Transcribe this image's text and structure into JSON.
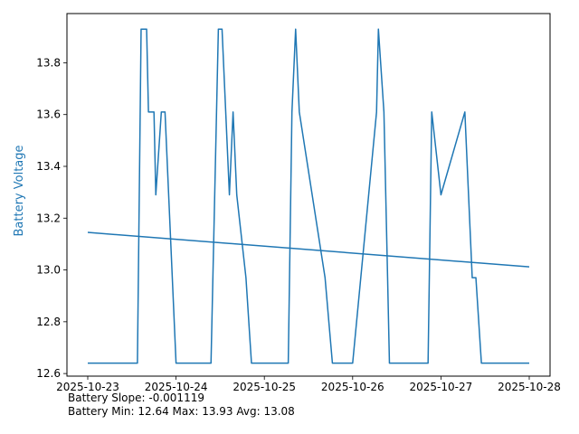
{
  "chart_data": {
    "type": "line",
    "title": "",
    "xlabel": "",
    "ylabel": "Battery Voltage",
    "ylabel_color": "#1f77b4",
    "xlim": [
      "2025-10-23",
      "2025-10-28"
    ],
    "ylim": [
      12.59,
      13.99
    ],
    "x_ticks": [
      "2025-10-23",
      "2025-10-24",
      "2025-10-25",
      "2025-10-26",
      "2025-10-27",
      "2025-10-28"
    ],
    "y_ticks": [
      12.6,
      12.8,
      13.0,
      13.2,
      13.4,
      13.6,
      13.8
    ],
    "y_tick_labels": [
      "12.6",
      "12.8",
      "13.0",
      "13.2",
      "13.4",
      "13.6",
      "13.8"
    ],
    "grid": false,
    "legend": "none",
    "series": [
      {
        "color": "#1f77b4",
        "x": [
          "2025-10-23 00:00",
          "2025-10-23 06:30",
          "2025-10-23 07:00",
          "2025-10-23 08:30",
          "2025-10-23 09:30",
          "2025-10-23 12:30",
          "2025-10-23 13:30",
          "2025-10-23 14:30",
          "2025-10-23 16:00",
          "2025-10-23 16:30",
          "2025-10-23 17:30",
          "2025-10-23 18:00",
          "2025-10-23 18:30",
          "2025-10-23 20:00",
          "2025-10-23 21:00",
          "2025-10-24 00:00",
          "2025-10-24 06:30",
          "2025-10-24 07:00",
          "2025-10-24 08:30",
          "2025-10-24 09:30",
          "2025-10-24 11:30",
          "2025-10-24 12:30",
          "2025-10-24 13:30",
          "2025-10-24 14:30",
          "2025-10-24 15:30",
          "2025-10-24 16:30",
          "2025-10-24 19:00",
          "2025-10-24 20:30",
          "2025-10-24 21:30",
          "2025-10-25 00:00",
          "2025-10-25 06:30",
          "2025-10-25 07:30",
          "2025-10-25 08:30",
          "2025-10-25 09:30",
          "2025-10-25 16:30",
          "2025-10-25 18:30",
          "2025-10-25 20:30",
          "2025-10-25 21:30",
          "2025-10-26 00:00",
          "2025-10-26 06:30",
          "2025-10-26 07:00",
          "2025-10-26 08:30",
          "2025-10-26 09:30",
          "2025-10-26 10:00",
          "2025-10-26 16:30",
          "2025-10-26 17:30",
          "2025-10-26 20:30",
          "2025-10-26 21:30",
          "2025-10-27 00:00",
          "2025-10-27 06:30",
          "2025-10-27 07:30",
          "2025-10-27 08:30",
          "2025-10-27 09:30",
          "2025-10-27 11:00",
          "2025-10-27 12:30",
          "2025-10-27 13:30",
          "2025-10-27 14:30",
          "2025-10-27 16:00",
          "2025-10-27 17:00",
          "2025-10-27 19:00",
          "2025-10-27 20:00",
          "2025-10-27 21:00",
          "2025-10-28 00:00"
        ],
        "values": [
          12.64,
          12.64,
          12.64,
          12.64,
          12.64,
          12.64,
          12.64,
          13.93,
          13.93,
          13.61,
          13.61,
          13.61,
          13.29,
          13.61,
          13.61,
          12.64,
          12.64,
          12.64,
          12.64,
          12.64,
          13.93,
          13.93,
          13.61,
          13.29,
          13.61,
          13.29,
          12.97,
          12.64,
          12.64,
          12.64,
          12.64,
          13.61,
          13.93,
          13.61,
          12.97,
          12.64,
          12.64,
          12.64,
          12.64,
          13.61,
          13.93,
          13.61,
          12.97,
          12.64,
          12.64,
          12.64,
          12.64,
          13.61,
          13.29,
          13.61,
          13.29,
          12.97,
          12.97,
          12.64,
          12.64,
          12.64,
          12.64,
          12.64,
          12.64,
          12.64,
          12.64,
          12.64,
          12.64
        ]
      },
      {
        "color": "#1f77b4",
        "x": [
          "2025-10-23 00:00",
          "2025-10-28 00:00"
        ],
        "values": [
          13.145,
          13.012
        ]
      }
    ]
  },
  "stats": {
    "slope_line": "Battery Slope: -0.001119",
    "minmax_line": "Battery Min: 12.64 Max: 13.93 Avg: 13.08"
  }
}
